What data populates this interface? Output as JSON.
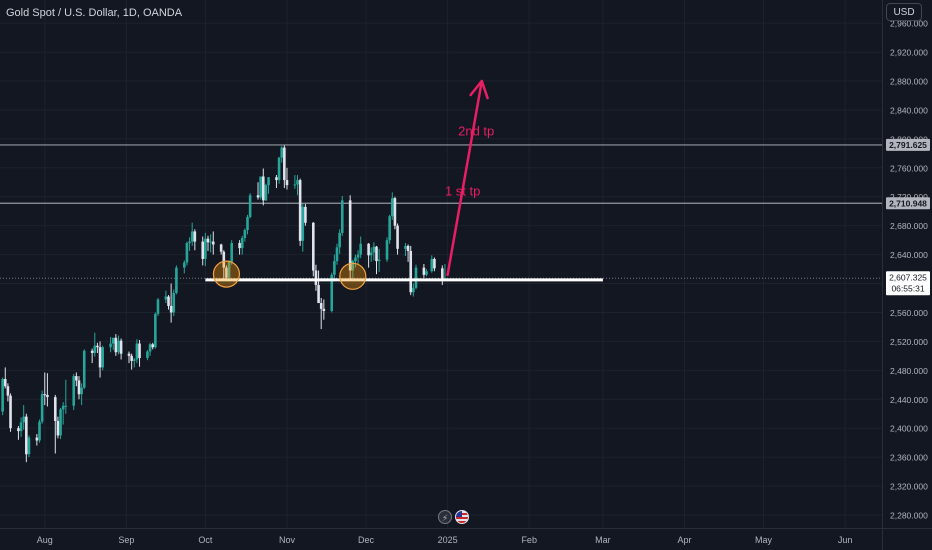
{
  "header": {
    "title": "Gold Spot / U.S. Dollar, 1D, OANDA",
    "currency": "USD"
  },
  "colors": {
    "background": "#131722",
    "bull": "#26a69a",
    "bear": "#e0e3eb",
    "support_line": "#ffffff",
    "arrow": "#e91e63",
    "label": "#e91e63",
    "level_line": "#9598a1",
    "grid": "#1e222d"
  },
  "chart_data": {
    "type": "candlestick",
    "x_type": "date",
    "x_axis_labels": [
      "Aug",
      "Sep",
      "Oct",
      "Nov",
      "Dec",
      "2025",
      "Feb",
      "Mar",
      "Apr",
      "May",
      "Jun"
    ],
    "y_ticks": [
      2280,
      2320,
      2360,
      2400,
      2440,
      2480,
      2520,
      2560,
      2600,
      2640,
      2680,
      2720,
      2760,
      2800,
      2840,
      2880,
      2920,
      2960
    ],
    "y_tick_labels": [
      "2,280.000",
      "2,320.000",
      "2,360.000",
      "2,400.000",
      "2,440.000",
      "2,480.000",
      "2,520.000",
      "2,560.000",
      "2,600.000",
      "2,640.000",
      "2,680.000",
      "2,720.000",
      "2,760.000",
      "2,800.000",
      "2,840.000",
      "2,880.000",
      "2,920.000",
      "2,960.000"
    ],
    "ylim": [
      2262,
      2992
    ],
    "xlim": [
      "2024-07-15",
      "2025-06-15"
    ],
    "candles": [
      [
        "2024-07-16",
        2423,
        2470,
        2418,
        2468
      ],
      [
        "2024-07-17",
        2468,
        2484,
        2455,
        2458
      ],
      [
        "2024-07-18",
        2458,
        2462,
        2437,
        2445
      ],
      [
        "2024-07-19",
        2445,
        2448,
        2395,
        2400
      ],
      [
        "2024-07-22",
        2400,
        2403,
        2384,
        2396
      ],
      [
        "2024-07-23",
        2396,
        2415,
        2388,
        2408
      ],
      [
        "2024-07-24",
        2408,
        2432,
        2398,
        2416
      ],
      [
        "2024-07-25",
        2416,
        2420,
        2353,
        2364
      ],
      [
        "2024-07-26",
        2364,
        2390,
        2360,
        2387
      ],
      [
        "2024-07-29",
        2387,
        2392,
        2376,
        2383
      ],
      [
        "2024-07-30",
        2383,
        2412,
        2380,
        2409
      ],
      [
        "2024-07-31",
        2409,
        2452,
        2406,
        2447
      ],
      [
        "2024-08-01",
        2447,
        2477,
        2432,
        2446
      ],
      [
        "2024-08-02",
        2446,
        2476,
        2430,
        2443
      ],
      [
        "2024-08-05",
        2443,
        2446,
        2365,
        2410
      ],
      [
        "2024-08-06",
        2410,
        2416,
        2386,
        2390
      ],
      [
        "2024-08-07",
        2390,
        2428,
        2385,
        2426
      ],
      [
        "2024-08-08",
        2426,
        2436,
        2405,
        2431
      ],
      [
        "2024-08-09",
        2431,
        2467,
        2420,
        2431
      ],
      [
        "2024-08-12",
        2431,
        2475,
        2425,
        2472
      ],
      [
        "2024-08-13",
        2472,
        2477,
        2458,
        2466
      ],
      [
        "2024-08-14",
        2466,
        2472,
        2440,
        2447
      ],
      [
        "2024-08-15",
        2447,
        2462,
        2432,
        2456
      ],
      [
        "2024-08-16",
        2456,
        2509,
        2454,
        2507
      ],
      [
        "2024-08-19",
        2507,
        2510,
        2490,
        2504
      ],
      [
        "2024-08-20",
        2504,
        2532,
        2499,
        2514
      ],
      [
        "2024-08-21",
        2514,
        2518,
        2504,
        2512
      ],
      [
        "2024-08-22",
        2512,
        2520,
        2470,
        2484
      ],
      [
        "2024-08-23",
        2484,
        2514,
        2480,
        2512
      ],
      [
        "2024-08-26",
        2512,
        2526,
        2505,
        2517
      ],
      [
        "2024-08-27",
        2517,
        2525,
        2508,
        2525
      ],
      [
        "2024-08-28",
        2525,
        2530,
        2500,
        2505
      ],
      [
        "2024-08-29",
        2505,
        2528,
        2502,
        2521
      ],
      [
        "2024-08-30",
        2521,
        2524,
        2495,
        2503
      ],
      [
        "2024-09-02",
        2503,
        2506,
        2490,
        2500
      ],
      [
        "2024-09-03",
        2500,
        2503,
        2481,
        2493
      ],
      [
        "2024-09-04",
        2493,
        2497,
        2484,
        2495
      ],
      [
        "2024-09-05",
        2495,
        2523,
        2490,
        2517
      ],
      [
        "2024-09-06",
        2517,
        2522,
        2485,
        2497
      ],
      [
        "2024-09-09",
        2497,
        2508,
        2494,
        2506
      ],
      [
        "2024-09-10",
        2506,
        2518,
        2500,
        2516
      ],
      [
        "2024-09-11",
        2516,
        2518,
        2509,
        2512
      ],
      [
        "2024-09-12",
        2512,
        2560,
        2510,
        2558
      ],
      [
        "2024-09-13",
        2558,
        2580,
        2555,
        2578
      ],
      [
        "2024-09-16",
        2578,
        2590,
        2573,
        2582
      ],
      [
        "2024-09-17",
        2582,
        2584,
        2564,
        2569
      ],
      [
        "2024-09-18",
        2569,
        2600,
        2546,
        2560
      ],
      [
        "2024-09-19",
        2560,
        2592,
        2555,
        2587
      ],
      [
        "2024-09-20",
        2587,
        2625,
        2585,
        2622
      ],
      [
        "2024-09-23",
        2622,
        2632,
        2614,
        2629
      ],
      [
        "2024-09-24",
        2629,
        2658,
        2625,
        2656
      ],
      [
        "2024-09-25",
        2656,
        2664,
        2645,
        2658
      ],
      [
        "2024-09-26",
        2658,
        2684,
        2652,
        2672
      ],
      [
        "2024-09-27",
        2672,
        2675,
        2646,
        2658
      ],
      [
        "2024-09-30",
        2658,
        2665,
        2625,
        2634
      ],
      [
        "2024-10-01",
        2634,
        2670,
        2624,
        2662
      ],
      [
        "2024-10-02",
        2662,
        2666,
        2645,
        2657
      ],
      [
        "2024-10-03",
        2657,
        2668,
        2643,
        2658
      ],
      [
        "2024-10-04",
        2658,
        2672,
        2640,
        2654
      ],
      [
        "2024-10-07",
        2654,
        2655,
        2640,
        2644
      ],
      [
        "2024-10-08",
        2644,
        2646,
        2605,
        2622
      ],
      [
        "2024-10-09",
        2622,
        2625,
        2605,
        2608
      ],
      [
        "2024-10-10",
        2608,
        2632,
        2604,
        2630
      ],
      [
        "2024-10-11",
        2630,
        2660,
        2626,
        2656
      ],
      [
        "2024-10-14",
        2656,
        2660,
        2640,
        2649
      ],
      [
        "2024-10-15",
        2649,
        2666,
        2640,
        2663
      ],
      [
        "2024-10-16",
        2663,
        2676,
        2658,
        2674
      ],
      [
        "2024-10-17",
        2674,
        2695,
        2668,
        2692
      ],
      [
        "2024-10-18",
        2692,
        2725,
        2690,
        2722
      ],
      [
        "2024-10-21",
        2722,
        2740,
        2716,
        2719
      ],
      [
        "2024-10-22",
        2719,
        2748,
        2716,
        2748
      ],
      [
        "2024-10-23",
        2748,
        2759,
        2708,
        2715
      ],
      [
        "2024-10-24",
        2715,
        2738,
        2714,
        2736
      ],
      [
        "2024-10-25",
        2736,
        2747,
        2724,
        2747
      ],
      [
        "2024-10-28",
        2747,
        2750,
        2732,
        2743
      ],
      [
        "2024-10-29",
        2743,
        2775,
        2738,
        2774
      ],
      [
        "2024-10-30",
        2774,
        2790,
        2767,
        2788
      ],
      [
        "2024-10-31",
        2788,
        2791,
        2732,
        2743
      ],
      [
        "2024-11-01",
        2743,
        2760,
        2730,
        2736
      ],
      [
        "2024-11-04",
        2736,
        2750,
        2731,
        2737
      ],
      [
        "2024-11-05",
        2737,
        2750,
        2722,
        2743
      ],
      [
        "2024-11-06",
        2743,
        2745,
        2652,
        2659
      ],
      [
        "2024-11-07",
        2659,
        2711,
        2644,
        2706
      ],
      [
        "2024-11-08",
        2706,
        2710,
        2680,
        2684
      ],
      [
        "2024-11-11",
        2684,
        2685,
        2610,
        2618
      ],
      [
        "2024-11-12",
        2618,
        2626,
        2590,
        2598
      ],
      [
        "2024-11-13",
        2598,
        2618,
        2580,
        2573
      ],
      [
        "2024-11-14",
        2573,
        2580,
        2537,
        2565
      ],
      [
        "2024-11-15",
        2565,
        2578,
        2550,
        2562
      ],
      [
        "2024-11-18",
        2562,
        2615,
        2560,
        2612
      ],
      [
        "2024-11-19",
        2612,
        2640,
        2606,
        2631
      ],
      [
        "2024-11-20",
        2631,
        2655,
        2626,
        2650
      ],
      [
        "2024-11-21",
        2650,
        2675,
        2641,
        2670
      ],
      [
        "2024-11-22",
        2670,
        2721,
        2666,
        2715
      ],
      [
        "2024-11-25",
        2715,
        2722,
        2605,
        2618
      ],
      [
        "2024-11-26",
        2618,
        2633,
        2605,
        2631
      ],
      [
        "2024-11-27",
        2631,
        2640,
        2622,
        2636
      ],
      [
        "2024-11-28",
        2636,
        2646,
        2627,
        2640
      ],
      [
        "2024-11-29",
        2640,
        2665,
        2635,
        2655
      ],
      [
        "2024-12-02",
        2655,
        2656,
        2622,
        2639
      ],
      [
        "2024-12-03",
        2639,
        2650,
        2630,
        2643
      ],
      [
        "2024-12-04",
        2643,
        2657,
        2632,
        2651
      ],
      [
        "2024-12-05",
        2651,
        2652,
        2613,
        2631
      ],
      [
        "2024-12-06",
        2631,
        2648,
        2616,
        2633
      ],
      [
        "2024-12-09",
        2633,
        2664,
        2630,
        2660
      ],
      [
        "2024-12-10",
        2660,
        2695,
        2655,
        2693
      ],
      [
        "2024-12-11",
        2693,
        2726,
        2688,
        2718
      ],
      [
        "2024-12-12",
        2718,
        2720,
        2675,
        2680
      ],
      [
        "2024-12-13",
        2680,
        2683,
        2640,
        2648
      ],
      [
        "2024-12-16",
        2648,
        2656,
        2638,
        2652
      ],
      [
        "2024-12-17",
        2652,
        2654,
        2630,
        2645
      ],
      [
        "2024-12-18",
        2645,
        2652,
        2584,
        2588
      ],
      [
        "2024-12-19",
        2588,
        2600,
        2582,
        2594
      ],
      [
        "2024-12-20",
        2594,
        2626,
        2592,
        2622
      ],
      [
        "2024-12-23",
        2622,
        2627,
        2608,
        2612
      ],
      [
        "2024-12-24",
        2612,
        2620,
        2610,
        2617
      ],
      [
        "2024-12-26",
        2617,
        2639,
        2615,
        2634
      ],
      [
        "2024-12-27",
        2634,
        2636,
        2617,
        2621
      ],
      [
        "2024-12-30",
        2621,
        2625,
        2598,
        2606
      ],
      [
        "2024-12-31",
        2606,
        2627,
        2603,
        2607
      ]
    ],
    "horizontal_levels": [
      {
        "value": 2791.625,
        "label": "2,791.625"
      },
      {
        "value": 2710.948,
        "label": "2,710.948"
      }
    ],
    "last_price": {
      "value": 2607.325,
      "label": "2,607.325",
      "countdown": "06:55:31"
    },
    "support_line": {
      "value": 2605,
      "x_start": "2024-10-01",
      "x_end": "2025-03-01"
    },
    "highlight_circles": [
      {
        "date": "2024-10-09",
        "value": 2613
      },
      {
        "date": "2024-11-26",
        "value": 2610
      }
    ],
    "arrow": {
      "from": [
        "2025-01-01",
        2612
      ],
      "to": [
        "2025-01-14",
        2880
      ]
    },
    "annotations": [
      {
        "text": "2nd tp",
        "date": "2025-01-05",
        "value": 2805
      },
      {
        "text": "1 st tp",
        "date": "2024-12-31",
        "value": 2722
      }
    ]
  }
}
